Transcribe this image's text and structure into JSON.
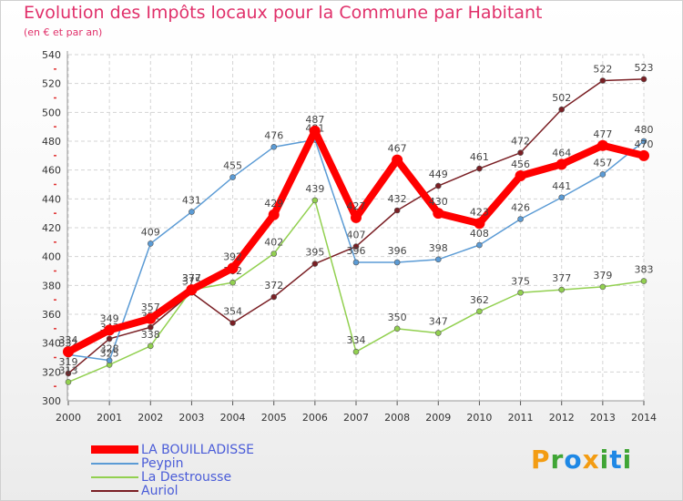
{
  "header": {
    "title": "Evolution des Impôts locaux pour la Commune par Habitant",
    "subtitle": "(en € et par an)"
  },
  "chart_data": {
    "type": "line",
    "title": "Evolution des Impôts locaux pour la Commune par Habitant",
    "subtitle": "(en € et par an)",
    "xlabel": "",
    "ylabel": "",
    "x": [
      2000,
      2001,
      2002,
      2003,
      2004,
      2005,
      2006,
      2007,
      2008,
      2009,
      2010,
      2011,
      2012,
      2013,
      2014
    ],
    "ylim": [
      300,
      540
    ],
    "yticks": [
      300,
      320,
      340,
      360,
      380,
      400,
      420,
      440,
      460,
      480,
      500,
      520,
      540
    ],
    "grid": true,
    "legend_position": "bottom-left",
    "series": [
      {
        "name": "Auriol",
        "color": "#7a1f24",
        "values": [
          319,
          343,
          351,
          375,
          354,
          372,
          395,
          407,
          432,
          449,
          461,
          472,
          502,
          522,
          523
        ]
      },
      {
        "name": "La Destrousse",
        "color": "#92d050",
        "values": [
          313,
          325,
          338,
          377,
          382,
          402,
          439,
          334,
          350,
          347,
          362,
          375,
          377,
          379,
          383
        ]
      },
      {
        "name": "Peypin",
        "color": "#5b9bd5",
        "values": [
          332,
          328,
          409,
          431,
          455,
          476,
          481,
          396,
          396,
          398,
          408,
          426,
          441,
          457,
          480
        ]
      },
      {
        "name": "LA BOUILLADISSE",
        "color": "#ff0000",
        "values": [
          334,
          349,
          357,
          377,
          392,
          429,
          487,
          427,
          467,
          430,
          423,
          456,
          464,
          477,
          470
        ]
      }
    ]
  },
  "legend": [
    {
      "label": "LA BOUILLADISSE",
      "color": "#ff0000"
    },
    {
      "label": "Peypin",
      "color": "#5b9bd5"
    },
    {
      "label": "La Destrousse",
      "color": "#92d050"
    },
    {
      "label": "Auriol",
      "color": "#7a1f24"
    }
  ],
  "logo": {
    "letters": [
      "P",
      "r",
      "o",
      "x",
      "i",
      "t",
      "i"
    ],
    "colors": [
      "#f39c12",
      "#3fa535",
      "#1e88e5",
      "#f39c12",
      "#3fa535",
      "#1e88e5",
      "#3fa535"
    ]
  }
}
